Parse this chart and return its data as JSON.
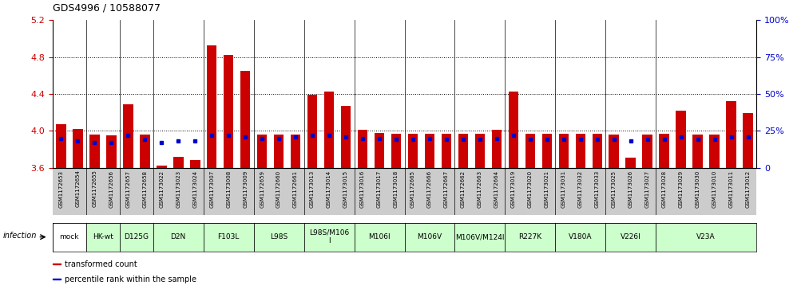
{
  "title": "GDS4996 / 10588077",
  "ylim": [
    3.6,
    5.2
  ],
  "ylim_right": [
    0,
    100
  ],
  "yticks_left": [
    3.6,
    4.0,
    4.4,
    4.8,
    5.2
  ],
  "yticks_right": [
    0,
    25,
    50,
    75,
    100
  ],
  "ylabel_left_color": "#cc0000",
  "ylabel_right_color": "#0000cc",
  "bar_color": "#cc0000",
  "dot_color": "#0000cc",
  "samples": [
    "GSM1172653",
    "GSM1172654",
    "GSM1172655",
    "GSM1172656",
    "GSM1172657",
    "GSM1172658",
    "GSM1173022",
    "GSM1173023",
    "GSM1173024",
    "GSM1173007",
    "GSM1173008",
    "GSM1173009",
    "GSM1172659",
    "GSM1172660",
    "GSM1172661",
    "GSM1173013",
    "GSM1173014",
    "GSM1173015",
    "GSM1173016",
    "GSM1173017",
    "GSM1173018",
    "GSM1172665",
    "GSM1172666",
    "GSM1172667",
    "GSM1172662",
    "GSM1172663",
    "GSM1172664",
    "GSM1173019",
    "GSM1173020",
    "GSM1173021",
    "GSM1173031",
    "GSM1173032",
    "GSM1173033",
    "GSM1173025",
    "GSM1173026",
    "GSM1173027",
    "GSM1173028",
    "GSM1173029",
    "GSM1173030",
    "GSM1173010",
    "GSM1173011",
    "GSM1173012"
  ],
  "red_values": [
    4.07,
    4.02,
    3.96,
    3.95,
    4.29,
    3.96,
    3.62,
    3.72,
    3.68,
    4.93,
    4.82,
    4.65,
    3.96,
    3.96,
    3.96,
    4.39,
    4.43,
    4.27,
    4.01,
    3.98,
    3.97,
    3.97,
    3.97,
    3.97,
    3.97,
    3.97,
    4.01,
    4.43,
    3.97,
    3.97,
    3.97,
    3.97,
    3.97,
    3.96,
    3.71,
    3.96,
    3.97,
    4.22,
    3.96,
    3.96,
    4.32,
    4.19
  ],
  "blue_values": [
    20,
    18,
    17,
    17,
    22,
    19,
    17,
    18,
    18,
    22,
    22,
    21,
    20,
    20,
    21,
    22,
    22,
    21,
    20,
    20,
    19,
    19,
    20,
    19,
    19,
    19,
    20,
    22,
    19,
    19,
    19,
    19,
    19,
    19,
    18,
    19,
    19,
    21,
    19,
    19,
    21,
    21
  ],
  "groups": [
    {
      "label": "mock",
      "start": 0,
      "end": 2,
      "color": "#ffffff"
    },
    {
      "label": "HK-wt",
      "start": 2,
      "end": 4,
      "color": "#ccffcc"
    },
    {
      "label": "D125G",
      "start": 4,
      "end": 6,
      "color": "#ccffcc"
    },
    {
      "label": "D2N",
      "start": 6,
      "end": 9,
      "color": "#ccffcc"
    },
    {
      "label": "F103L",
      "start": 9,
      "end": 12,
      "color": "#ccffcc"
    },
    {
      "label": "L98S",
      "start": 12,
      "end": 15,
      "color": "#ccffcc"
    },
    {
      "label": "L98S/M106\nI",
      "start": 15,
      "end": 18,
      "color": "#ccffcc"
    },
    {
      "label": "M106I",
      "start": 18,
      "end": 21,
      "color": "#ccffcc"
    },
    {
      "label": "M106V",
      "start": 21,
      "end": 24,
      "color": "#ccffcc"
    },
    {
      "label": "M106V/M124I",
      "start": 24,
      "end": 27,
      "color": "#ccffcc"
    },
    {
      "label": "R227K",
      "start": 27,
      "end": 30,
      "color": "#ccffcc"
    },
    {
      "label": "V180A",
      "start": 30,
      "end": 33,
      "color": "#ccffcc"
    },
    {
      "label": "V226I",
      "start": 33,
      "end": 36,
      "color": "#ccffcc"
    },
    {
      "label": "V23A",
      "start": 36,
      "end": 42,
      "color": "#ccffcc"
    }
  ],
  "legend_items": [
    {
      "color": "#cc0000",
      "label": "transformed count"
    },
    {
      "color": "#0000cc",
      "label": "percentile rank within the sample"
    }
  ],
  "grid_yticks": [
    4.0,
    4.4,
    4.8
  ],
  "bar_width": 0.6,
  "dot_size": 3.5,
  "tick_bg_color": "#cccccc",
  "group_divider_color": "#000000"
}
